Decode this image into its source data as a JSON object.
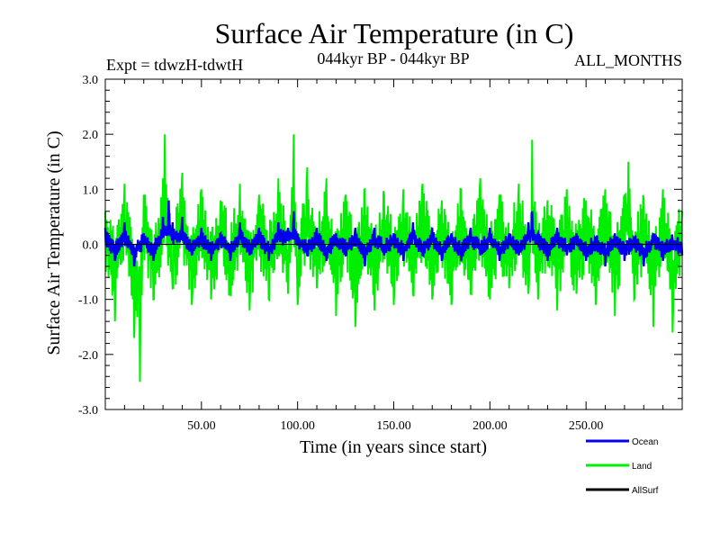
{
  "chart_data": {
    "type": "line",
    "title": "Surface Air Temperature (in C)",
    "subtitle_left": "Expt = tdwzH-tdwtH",
    "subtitle_center": "044kyr BP - 044kyr BP",
    "subtitle_right": "ALL_MONTHS",
    "xlabel": "Time (in years since start)",
    "ylabel": "Surface Air Temperature (in C)",
    "xlim": [
      0,
      300
    ],
    "ylim": [
      -3.0,
      3.0
    ],
    "x_ticks": [
      50,
      100,
      150,
      200,
      250
    ],
    "x_tick_labels": [
      "50.00",
      "100.00",
      "150.00",
      "200.00",
      "250.00"
    ],
    "y_ticks": [
      -3,
      -2,
      -1,
      0,
      1,
      2,
      3
    ],
    "y_tick_labels": [
      "-3.0",
      "-2.0",
      "-1.0",
      "0.0",
      "1.0",
      "2.0",
      "3.0"
    ],
    "zero_line": true,
    "grid": false,
    "legend_position": "bottom-right",
    "series": [
      {
        "name": "Land",
        "color": "#00ee00",
        "note_extrema": "approximate envelope values read from the plot",
        "x": [
          0,
          5,
          10,
          15,
          18,
          20,
          25,
          30,
          31,
          35,
          40,
          45,
          50,
          55,
          60,
          65,
          70,
          75,
          80,
          85,
          90,
          95,
          98,
          100,
          105,
          110,
          115,
          120,
          125,
          130,
          135,
          140,
          145,
          150,
          155,
          160,
          165,
          170,
          175,
          180,
          185,
          190,
          195,
          200,
          205,
          210,
          215,
          220,
          222,
          225,
          230,
          235,
          240,
          245,
          250,
          255,
          260,
          265,
          270,
          272,
          275,
          280,
          285,
          290,
          295,
          300
        ],
        "values": [
          0.6,
          -1.4,
          1.1,
          -1.7,
          -2.5,
          0.9,
          -1.0,
          1.2,
          2.0,
          -0.8,
          1.3,
          -1.1,
          1.0,
          -1.0,
          0.8,
          -0.9,
          1.1,
          -1.2,
          0.9,
          -1.0,
          1.2,
          -0.9,
          2.0,
          -1.1,
          1.4,
          -0.8,
          1.2,
          -1.3,
          0.9,
          -1.5,
          1.0,
          -1.2,
          0.9,
          -1.1,
          1.0,
          -0.9,
          1.1,
          -1.0,
          0.8,
          -1.1,
          1.0,
          -0.9,
          1.2,
          -1.0,
          0.9,
          -0.8,
          1.1,
          -0.9,
          1.9,
          -1.0,
          0.8,
          -1.2,
          1.0,
          -0.9,
          0.8,
          -1.1,
          1.0,
          -1.3,
          0.9,
          1.5,
          -1.0,
          0.8,
          -1.5,
          1.0,
          -1.6,
          0.6
        ]
      },
      {
        "name": "Ocean",
        "color": "#0000ee",
        "x": [
          0,
          5,
          10,
          15,
          20,
          25,
          30,
          33,
          35,
          40,
          45,
          50,
          55,
          60,
          65,
          70,
          75,
          80,
          85,
          90,
          95,
          98,
          100,
          105,
          110,
          115,
          120,
          125,
          130,
          135,
          140,
          145,
          150,
          155,
          160,
          165,
          170,
          175,
          180,
          185,
          190,
          195,
          200,
          205,
          210,
          215,
          220,
          222,
          225,
          230,
          235,
          240,
          245,
          250,
          255,
          260,
          265,
          270,
          275,
          280,
          285,
          290,
          295,
          300
        ],
        "values": [
          0.3,
          -0.3,
          0.4,
          -0.4,
          0.2,
          -0.3,
          0.5,
          0.8,
          0.4,
          0.5,
          -0.2,
          0.3,
          -0.3,
          0.2,
          -0.3,
          0.4,
          -0.2,
          0.3,
          -0.3,
          0.4,
          0.3,
          0.6,
          0.2,
          -0.2,
          0.3,
          -0.3,
          0.2,
          -0.2,
          0.3,
          -0.4,
          0.3,
          -0.2,
          0.2,
          -0.3,
          0.4,
          -0.2,
          0.3,
          -0.3,
          0.2,
          -0.3,
          0.3,
          -0.2,
          0.3,
          -0.3,
          0.2,
          -0.2,
          0.4,
          0.6,
          0.2,
          -0.3,
          0.3,
          -0.2,
          0.2,
          -0.3,
          0.1,
          -0.4,
          0.2,
          -0.3,
          0.1,
          -0.4,
          0.2,
          -0.3,
          0.1,
          -0.2
        ]
      },
      {
        "name": "AllSurf",
        "color": "#000000",
        "x": [],
        "values": []
      }
    ]
  }
}
